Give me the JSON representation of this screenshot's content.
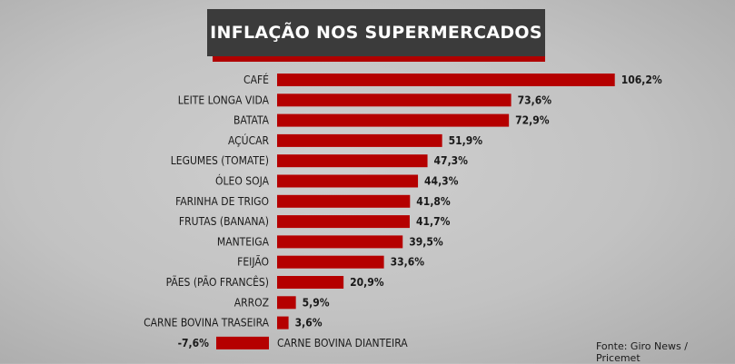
{
  "chart_data": {
    "type": "bar",
    "orientation": "horizontal",
    "title": "INFLAÇÃO NOS SUPERMERCADOS",
    "categories": [
      "CAFÉ",
      "LEITE LONGA VIDA",
      "BATATA",
      "AÇÚCAR",
      "LEGUMES (TOMATE)",
      "ÓLEO SOJA",
      "FARINHA DE TRIGO",
      "FRUTAS (BANANA)",
      "MANTEIGA",
      "FEIJÃO",
      "PÃES (PÃO FRANCÊS)",
      "ARROZ",
      "CARNE BOVINA TRASEIRA",
      "CARNE BOVINA DIANTEIRA"
    ],
    "values": [
      106.2,
      73.6,
      72.9,
      51.9,
      47.3,
      44.3,
      41.8,
      41.7,
      39.5,
      33.6,
      20.9,
      5.9,
      3.6,
      -7.6
    ],
    "value_labels": [
      "106,2%",
      "73,6%",
      "72,9%",
      "51,9%",
      "47,3%",
      "44,3%",
      "41,8%",
      "41,7%",
      "39,5%",
      "33,6%",
      "20,9%",
      "5,9%",
      "3,6%",
      "-7,6%"
    ],
    "bar_color": "#b50000",
    "grid": false,
    "legend": false
  },
  "source": "Fonte: Giro News / Pricemet"
}
